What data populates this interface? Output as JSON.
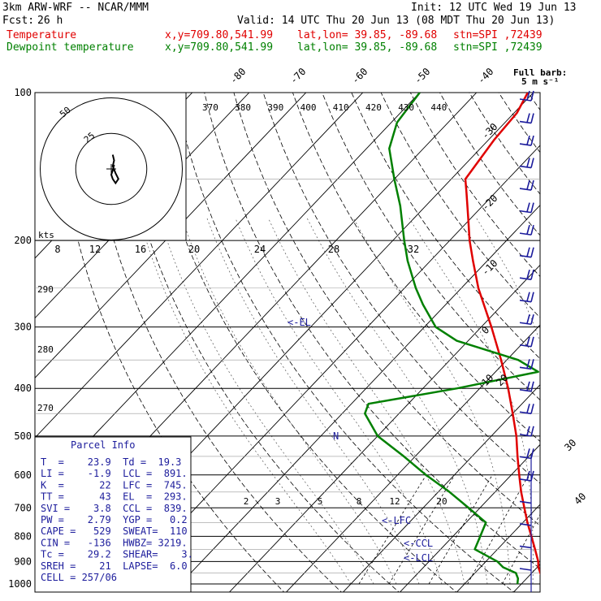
{
  "header": {
    "model": "3km ARW-WRF -- NCAR/MMM",
    "init": "Init: 12 UTC Wed 19 Jun 13",
    "fcst_label": "Fcst:",
    "fcst_value": "26 h",
    "valid": "Valid: 14 UTC Thu 20 Jun 13 (08 MDT Thu 20 Jun 13)",
    "temp_line": {
      "label": "Temperature",
      "xy": "x,y=709.80,541.99",
      "latlon": "lat,lon= 39.85, -89.68",
      "stn": "stn=SPI ,72439",
      "color": "#e00000"
    },
    "dew_line": {
      "label": "Dewpoint temperature",
      "xy": "x,y=709.80,541.99",
      "latlon": "lat,lon= 39.85, -89.68",
      "stn": "stn=SPI ,72439",
      "color": "#008000"
    }
  },
  "barb_legend": {
    "line1": "Full barb:",
    "line2": "5 m s⁻¹"
  },
  "chart_data": {
    "type": "line",
    "subtype": "skew-T log-p sounding",
    "pressure_axis": {
      "ticks": [
        100,
        200,
        300,
        400,
        500,
        600,
        700,
        800,
        900,
        1000
      ],
      "range": [
        100,
        1000
      ],
      "scale": "log"
    },
    "temperature_ticks_top": [
      -80,
      -70,
      -60,
      -50,
      -40
    ],
    "temperature_ticks_right": [
      -30,
      -20,
      -10,
      0,
      10,
      20,
      30,
      40
    ],
    "theta_ticks": [
      370,
      380,
      390,
      400,
      410,
      420,
      430,
      440
    ],
    "theta_left_ticks": [
      290,
      280,
      270
    ],
    "hodograph_ticks": [
      8,
      12,
      16,
      20,
      24,
      28,
      32
    ],
    "hodograph_unit": "kts",
    "hodograph_rings": [
      25,
      50
    ],
    "mixing_ratio_ticks": [
      2,
      3,
      5,
      8,
      12,
      20
    ],
    "annotations": [
      "<-EL",
      "N",
      "<-LFC",
      "<-CCL",
      "<-LCL"
    ],
    "series": [
      {
        "name": "Temperature",
        "color": "#e00000",
        "points": [
          [
            1000,
            23.9
          ],
          [
            975,
            22.8
          ],
          [
            950,
            21.5
          ],
          [
            925,
            20.2
          ],
          [
            900,
            19.2
          ],
          [
            850,
            16.6
          ],
          [
            800,
            13.8
          ],
          [
            750,
            10.8
          ],
          [
            700,
            7.8
          ],
          [
            650,
            4.6
          ],
          [
            600,
            1.4
          ],
          [
            550,
            -2.0
          ],
          [
            500,
            -5.6
          ],
          [
            450,
            -10.0
          ],
          [
            400,
            -15.0
          ],
          [
            350,
            -21.0
          ],
          [
            300,
            -28.2
          ],
          [
            250,
            -37.0
          ],
          [
            220,
            -42.5
          ],
          [
            200,
            -46.5
          ],
          [
            180,
            -50.5
          ],
          [
            160,
            -55.0
          ],
          [
            150,
            -57.5
          ],
          [
            125,
            -59.0
          ],
          [
            110,
            -59.5
          ],
          [
            100,
            -61.0
          ]
        ]
      },
      {
        "name": "Dewpoint temperature",
        "color": "#008000",
        "points": [
          [
            1000,
            19.3
          ],
          [
            975,
            18.5
          ],
          [
            950,
            17.2
          ],
          [
            925,
            14.0
          ],
          [
            900,
            12.0
          ],
          [
            850,
            6.0
          ],
          [
            800,
            4.8
          ],
          [
            750,
            3.5
          ],
          [
            700,
            -2.0
          ],
          [
            650,
            -8.0
          ],
          [
            600,
            -15.0
          ],
          [
            550,
            -22.0
          ],
          [
            500,
            -30.0
          ],
          [
            450,
            -36.0
          ],
          [
            430,
            -37.0
          ],
          [
            400,
            -24.0
          ],
          [
            370,
            -12.5
          ],
          [
            350,
            -18.0
          ],
          [
            320,
            -32.0
          ],
          [
            300,
            -38.0
          ],
          [
            270,
            -44.0
          ],
          [
            250,
            -48.0
          ],
          [
            220,
            -54.0
          ],
          [
            200,
            -58.0
          ],
          [
            170,
            -64.5
          ],
          [
            150,
            -70.0
          ],
          [
            130,
            -76.0
          ],
          [
            115,
            -79.0
          ],
          [
            100,
            -80.0
          ]
        ]
      }
    ],
    "hodograph_trace_kts": [
      [
        1,
        -10
      ],
      [
        2,
        -6
      ],
      [
        1,
        -2
      ],
      [
        3,
        3
      ],
      [
        5,
        7
      ],
      [
        3,
        10
      ],
      [
        1,
        7
      ],
      [
        0,
        4
      ],
      [
        1,
        1
      ],
      [
        2,
        -3
      ]
    ],
    "wind_barb_count": 22
  },
  "parcel_info": {
    "title": "Parcel Info",
    "rows": [
      "T  =    23.9  Td =  19.3",
      "LI =    -1.9  LCL =  891.",
      "K  =      22  LFC =  745.",
      "TT =      43  EL  =  293.",
      "SVI =    3.8  CCL =  839.",
      "PW =    2.79  YGP =   0.2",
      "CAPE =   529  SWEAT=  110",
      "CIN =   -136  HWBZ= 3219.",
      "Tc =    29.2  SHEAR=    3.",
      "SREH =    21  LAPSE=  6.0",
      "CELL = 257/06"
    ]
  }
}
